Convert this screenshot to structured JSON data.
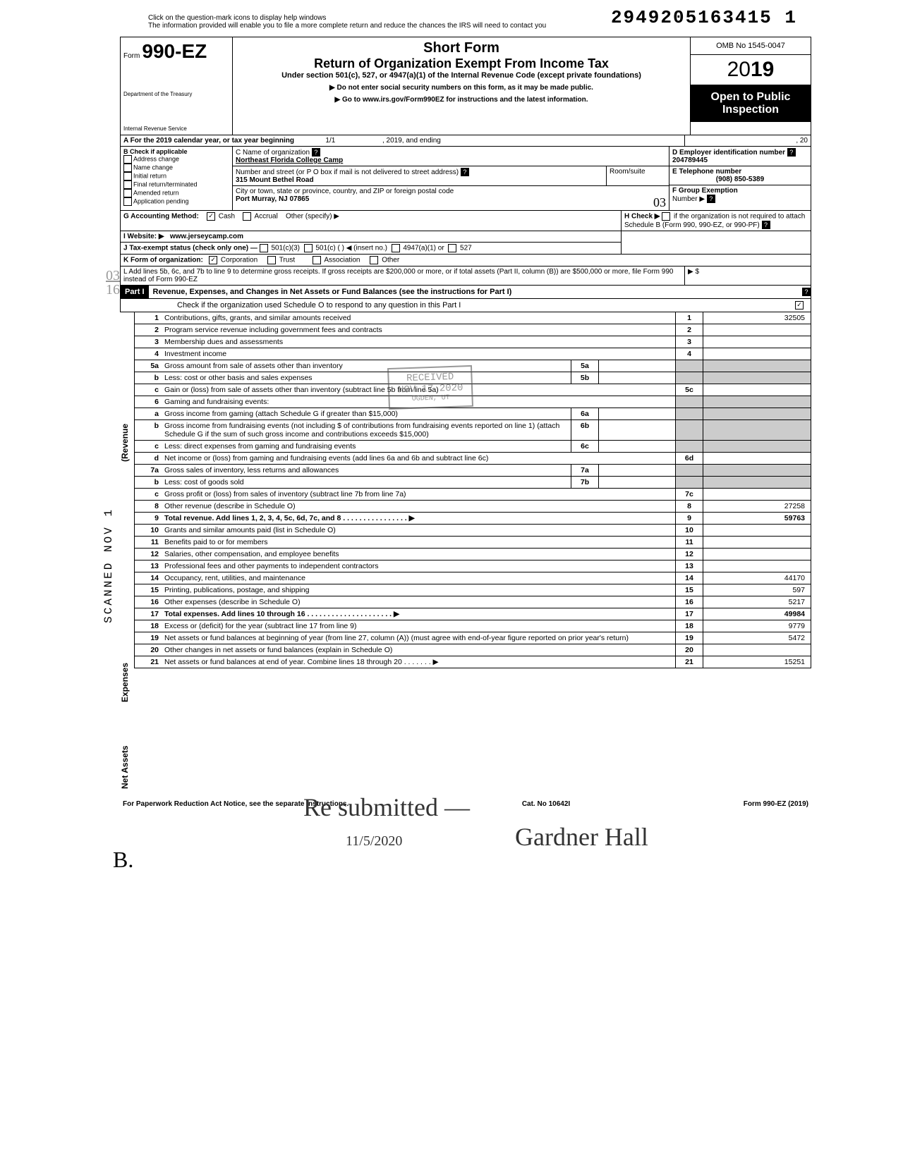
{
  "top_note_1": "Click on the question-mark icons to display help windows",
  "top_note_2": "The information provided will enable you to file a more complete return and reduce the chances the IRS will need to contact you",
  "barcode": "2949205163415 1",
  "header": {
    "form_prefix": "Form",
    "form_num": "990-EZ",
    "short_form": "Short Form",
    "title": "Return of Organization Exempt From Income Tax",
    "subtitle": "Under section 501(c), 527, or 4947(a)(1) of the Internal Revenue Code (except private foundations)",
    "instr1": "▶ Do not enter social security numbers on this form, as it may be made public.",
    "instr2": "▶ Go to www.irs.gov/Form990EZ for instructions and the latest information.",
    "dept1": "Department of the Treasury",
    "dept2": "Internal Revenue Service",
    "omb": "OMB No 1545-0047",
    "year": "2019",
    "open": "Open to Public Inspection"
  },
  "line_a": "A For the 2019 calendar year, or tax year beginning",
  "line_a_mid": "1/1",
  "line_a_mid2": ", 2019, and ending",
  "line_a_end": ", 20",
  "b": {
    "label": "B Check if applicable",
    "items": [
      "Address change",
      "Name change",
      "Initial return",
      "Final return/terminated",
      "Amended return",
      "Application pending"
    ]
  },
  "c": {
    "label": "C Name of organization",
    "name": "Northeast Florida College Camp",
    "street_label": "Number and street (or P O  box if mail is not delivered to street address)",
    "room": "Room/suite",
    "street": "315 Mount Bethel Road",
    "city_label": "City or town, state or province, country, and ZIP or foreign postal code",
    "city": "Port Murray, NJ 07865"
  },
  "d": {
    "label": "D Employer identification number",
    "val": "204789445"
  },
  "e": {
    "label": "E Telephone number",
    "val": "(908) 850-5389"
  },
  "f": {
    "label": "F Group Exemption",
    "label2": "Number ▶"
  },
  "g": {
    "label": "G Accounting Method:",
    "cash": "Cash",
    "accrual": "Accrual",
    "other": "Other (specify) ▶"
  },
  "h": {
    "label": "H Check ▶",
    "text": "if the organization is not required to attach Schedule B (Form 990, 990-EZ, or 990-PF)"
  },
  "i": {
    "label": "I  Website: ▶",
    "val": "www.jerseycamp.com"
  },
  "j": {
    "label": "J Tax-exempt status (check only one) —",
    "opts": [
      "501(c)(3)",
      "501(c) (          ) ◀ (insert no.)",
      "4947(a)(1) or",
      "527"
    ]
  },
  "k": {
    "label": "K Form of organization:",
    "opts": [
      "Corporation",
      "Trust",
      "Association",
      "Other"
    ]
  },
  "l": "L Add lines 5b, 6c, and 7b to line 9 to determine gross receipts. If gross receipts are $200,000 or more, or if total assets (Part II, column (B)) are $500,000 or more, file Form 990 instead of Form 990-EZ",
  "l_amt": "▶    $",
  "part1": {
    "label": "Part I",
    "title": "Revenue, Expenses, and Changes in Net Assets or Fund Balances (see the instructions for Part I)",
    "check": "Check if the organization used Schedule O to respond to any question in this Part I"
  },
  "side_labels": {
    "revenue": "(Revenue",
    "expenses": "Expenses",
    "netassets": "Net Assets"
  },
  "lines": [
    {
      "num": "1",
      "desc": "Contributions, gifts, grants, and similar amounts received",
      "box": "1",
      "val": "32505"
    },
    {
      "num": "2",
      "desc": "Program service revenue including government fees and contracts",
      "box": "2",
      "val": ""
    },
    {
      "num": "3",
      "desc": "Membership dues and assessments",
      "box": "3",
      "val": ""
    },
    {
      "num": "4",
      "desc": "Investment income",
      "box": "4",
      "val": ""
    },
    {
      "num": "5a",
      "desc": "Gross amount from sale of assets other than inventory",
      "inner_box": "5a",
      "inner_val": ""
    },
    {
      "num": "b",
      "desc": "Less: cost or other basis and sales expenses",
      "inner_box": "5b",
      "inner_val": ""
    },
    {
      "num": "c",
      "desc": "Gain or (loss) from sale of assets other than inventory (subtract line 5b from line 5a)",
      "box": "5c",
      "val": ""
    },
    {
      "num": "6",
      "desc": "Gaming and fundraising events:"
    },
    {
      "num": "a",
      "desc": "Gross income from gaming (attach Schedule G if greater than $15,000)",
      "inner_box": "6a",
      "inner_val": ""
    },
    {
      "num": "b",
      "desc": "Gross income from fundraising events (not including  $                     of contributions from fundraising events reported on line 1) (attach Schedule G if the sum of such gross income and contributions exceeds $15,000)",
      "inner_box": "6b",
      "inner_val": ""
    },
    {
      "num": "c",
      "desc": "Less: direct expenses from gaming and fundraising events",
      "inner_box": "6c",
      "inner_val": ""
    },
    {
      "num": "d",
      "desc": "Net income or (loss) from gaming and fundraising events (add lines 6a and 6b and subtract line 6c)",
      "box": "6d",
      "val": ""
    },
    {
      "num": "7a",
      "desc": "Gross sales of inventory, less returns and allowances",
      "inner_box": "7a",
      "inner_val": ""
    },
    {
      "num": "b",
      "desc": "Less: cost of goods sold",
      "inner_box": "7b",
      "inner_val": ""
    },
    {
      "num": "c",
      "desc": "Gross profit or (loss) from sales of inventory (subtract line 7b from line 7a)",
      "box": "7c",
      "val": ""
    },
    {
      "num": "8",
      "desc": "Other revenue (describe in Schedule O)",
      "box": "8",
      "val": "27258"
    },
    {
      "num": "9",
      "desc": "Total revenue. Add lines 1, 2, 3, 4, 5c, 6d, 7c, and 8   . . . . . . . . . . . . . . . . ▶",
      "box": "9",
      "val": "59763",
      "bold": true
    },
    {
      "num": "10",
      "desc": "Grants and similar amounts paid (list in Schedule O)",
      "box": "10",
      "val": ""
    },
    {
      "num": "11",
      "desc": "Benefits paid to or for members",
      "box": "11",
      "val": ""
    },
    {
      "num": "12",
      "desc": "Salaries, other compensation, and employee benefits",
      "box": "12",
      "val": ""
    },
    {
      "num": "13",
      "desc": "Professional fees and other payments to independent contractors",
      "box": "13",
      "val": ""
    },
    {
      "num": "14",
      "desc": "Occupancy, rent, utilities, and maintenance",
      "box": "14",
      "val": "44170"
    },
    {
      "num": "15",
      "desc": "Printing, publications, postage, and shipping",
      "box": "15",
      "val": "597"
    },
    {
      "num": "16",
      "desc": "Other expenses (describe in Schedule O)",
      "box": "16",
      "val": "5217"
    },
    {
      "num": "17",
      "desc": "Total expenses. Add lines 10 through 16   . . . . . . . . . . . . . . . . . . . . . ▶",
      "box": "17",
      "val": "49984",
      "bold": true
    },
    {
      "num": "18",
      "desc": "Excess or (deficit) for the year (subtract line 17 from line 9)",
      "box": "18",
      "val": "9779"
    },
    {
      "num": "19",
      "desc": "Net assets or fund balances at beginning of year (from line 27, column (A)) (must agree with end-of-year figure reported on prior year's return)",
      "box": "19",
      "val": "5472"
    },
    {
      "num": "20",
      "desc": "Other changes in net assets or fund balances (explain in Schedule O)",
      "box": "20",
      "val": ""
    },
    {
      "num": "21",
      "desc": "Net assets or fund balances at end of year. Combine lines 18 through 20   . . . . . . . ▶",
      "box": "21",
      "val": "15251"
    }
  ],
  "footer": {
    "left": "For Paperwork Reduction Act Notice, see the separate instructions.",
    "center": "Cat. No 10642I",
    "right": "Form 990-EZ (2019)"
  },
  "stamps": {
    "received_l1": "RECEIVED",
    "received_l2": "NOV 17 2020",
    "received_l3": "OGDEN, UT",
    "scanned": "SCANNED NOV 1",
    "margin_03": "03",
    "margin_16": "16",
    "margin_b": "B.",
    "gf_03": "03"
  },
  "sig": {
    "resubmit": "Re submitted",
    "date": "11/5/2020",
    "name": "Gardner Hall"
  }
}
